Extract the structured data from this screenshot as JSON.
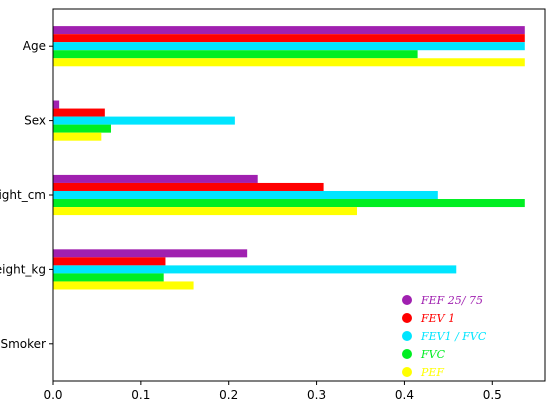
{
  "chart_data": {
    "type": "bar",
    "orientation": "horizontal",
    "categories": [
      "Age",
      "Sex",
      "Height_cm",
      "Weight_kg",
      "Smoker"
    ],
    "series": [
      {
        "name": "FEF 25/ 75",
        "color": "#a020b0",
        "values": [
          0.537,
          0.007,
          0.233,
          0.221,
          0.0
        ]
      },
      {
        "name": "FEV 1",
        "color": "#ff0000",
        "values": [
          0.537,
          0.059,
          0.308,
          0.128,
          0.0
        ]
      },
      {
        "name": "FEV1 / FVC",
        "color": "#00e5ff",
        "values": [
          0.537,
          0.207,
          0.438,
          0.459,
          0.0
        ]
      },
      {
        "name": "FVC",
        "color": "#00ee22",
        "values": [
          0.415,
          0.066,
          0.537,
          0.126,
          0.0
        ]
      },
      {
        "name": "PEF",
        "color": "#ffff00",
        "values": [
          0.537,
          0.055,
          0.346,
          0.16,
          0.0
        ]
      }
    ],
    "xticks": [
      "0.0",
      "0.1",
      "0.2",
      "0.3",
      "0.4",
      "0.5"
    ],
    "xlim": [
      0,
      0.56
    ],
    "title": "",
    "xlabel": "",
    "ylabel": "",
    "grid": false,
    "legend_position": "lower-right"
  }
}
